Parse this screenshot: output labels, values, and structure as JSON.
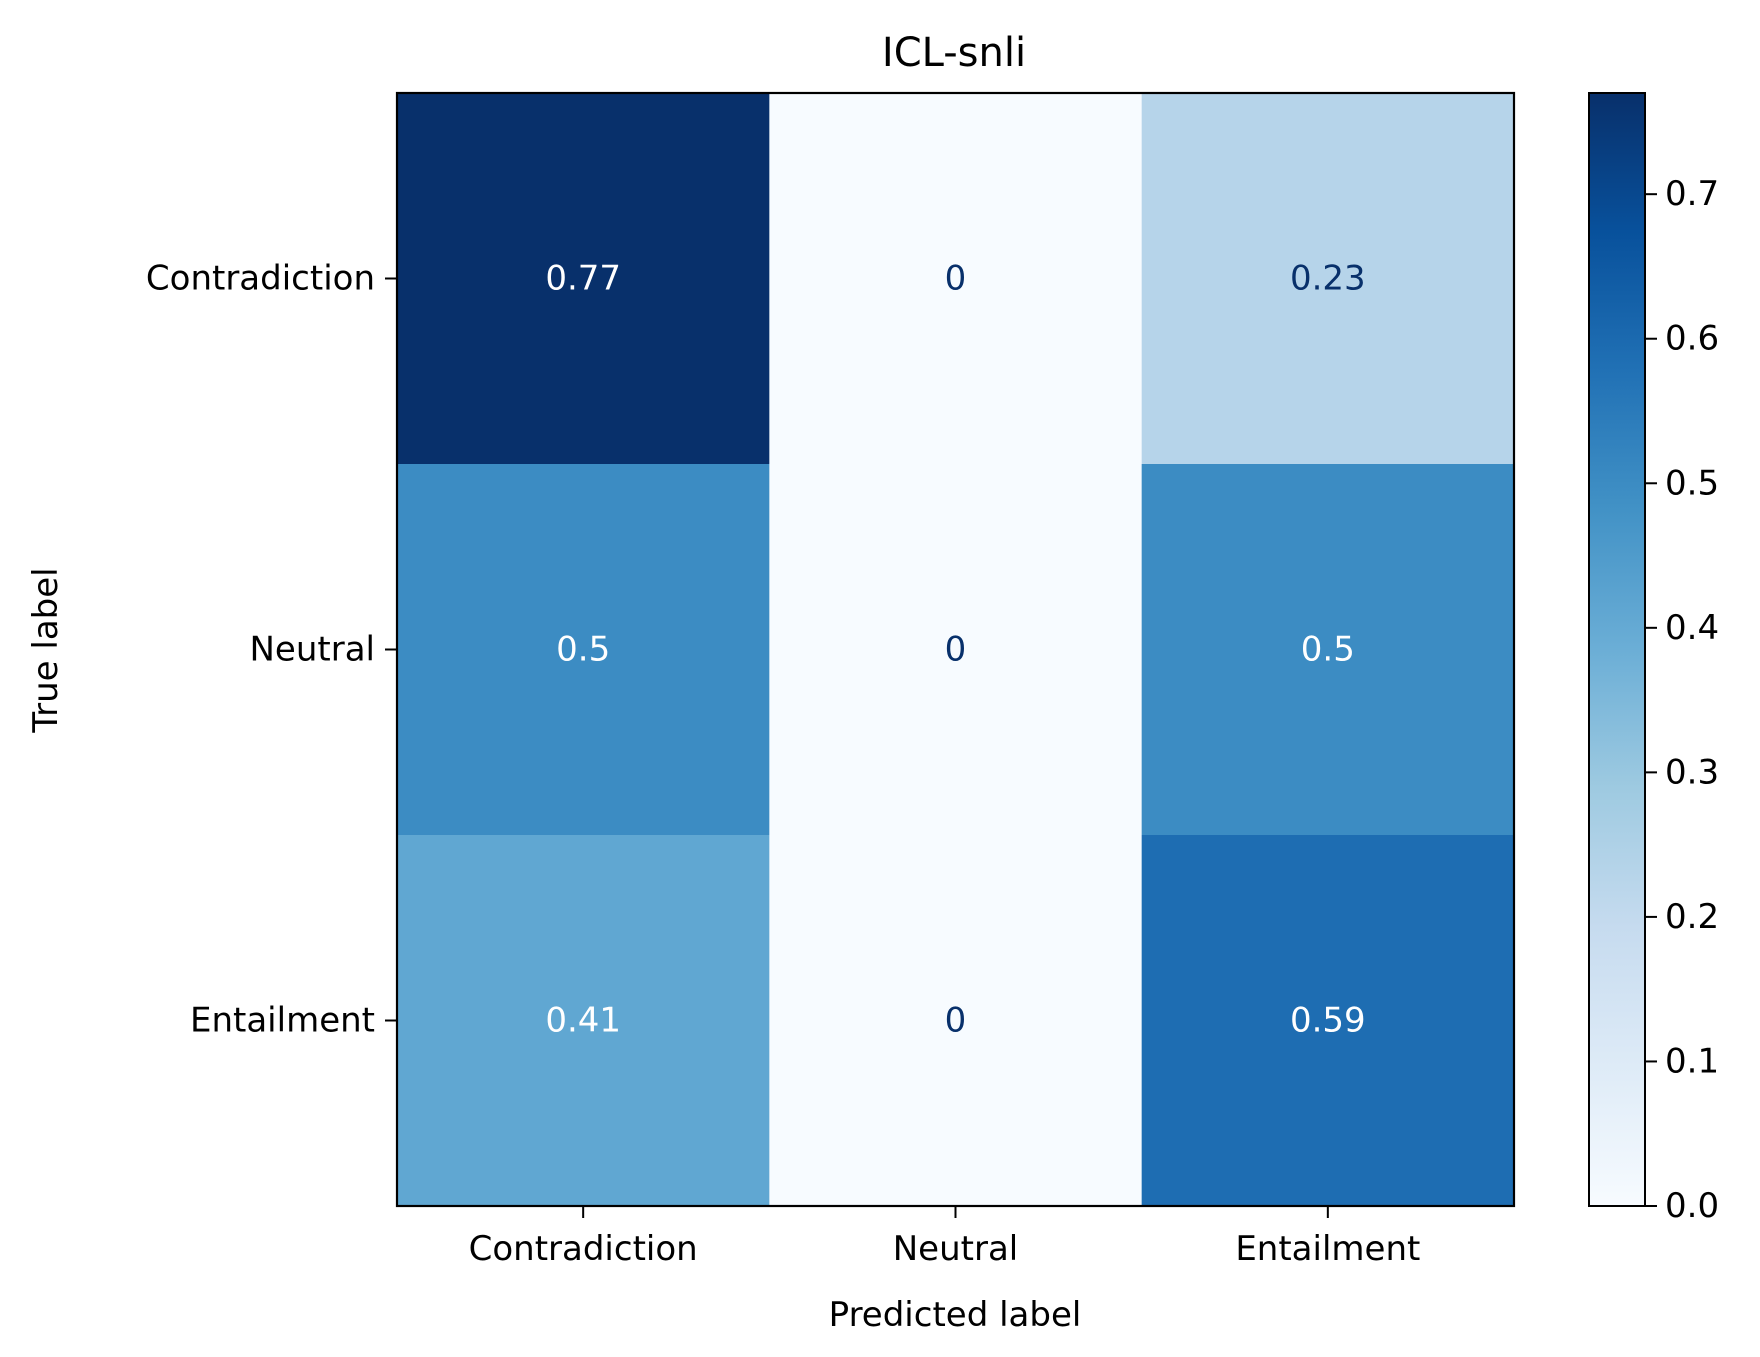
{
  "chart_data": {
    "type": "heatmap",
    "title": "ICL-snli",
    "xlabel": "Predicted label",
    "ylabel": "True label",
    "x_categories": [
      "Contradiction",
      "Neutral",
      "Entailment"
    ],
    "y_categories": [
      "Contradiction",
      "Neutral",
      "Entailment"
    ],
    "values": [
      [
        0.77,
        0,
        0.23
      ],
      [
        0.5,
        0,
        0.5
      ],
      [
        0.41,
        0,
        0.59
      ]
    ],
    "cell_labels": [
      [
        "0.77",
        "0",
        "0.23"
      ],
      [
        "0.5",
        "0",
        "0.5"
      ],
      [
        "0.41",
        "0",
        "0.59"
      ]
    ],
    "colormap": "Blues",
    "colorbar": {
      "range": [
        0,
        0.77
      ],
      "ticks": [
        0.0,
        0.1,
        0.2,
        0.3,
        0.4,
        0.5,
        0.6,
        0.7
      ],
      "tick_labels": [
        "0.0",
        "0.1",
        "0.2",
        "0.3",
        "0.4",
        "0.5",
        "0.6",
        "0.7"
      ]
    },
    "grid": false
  }
}
